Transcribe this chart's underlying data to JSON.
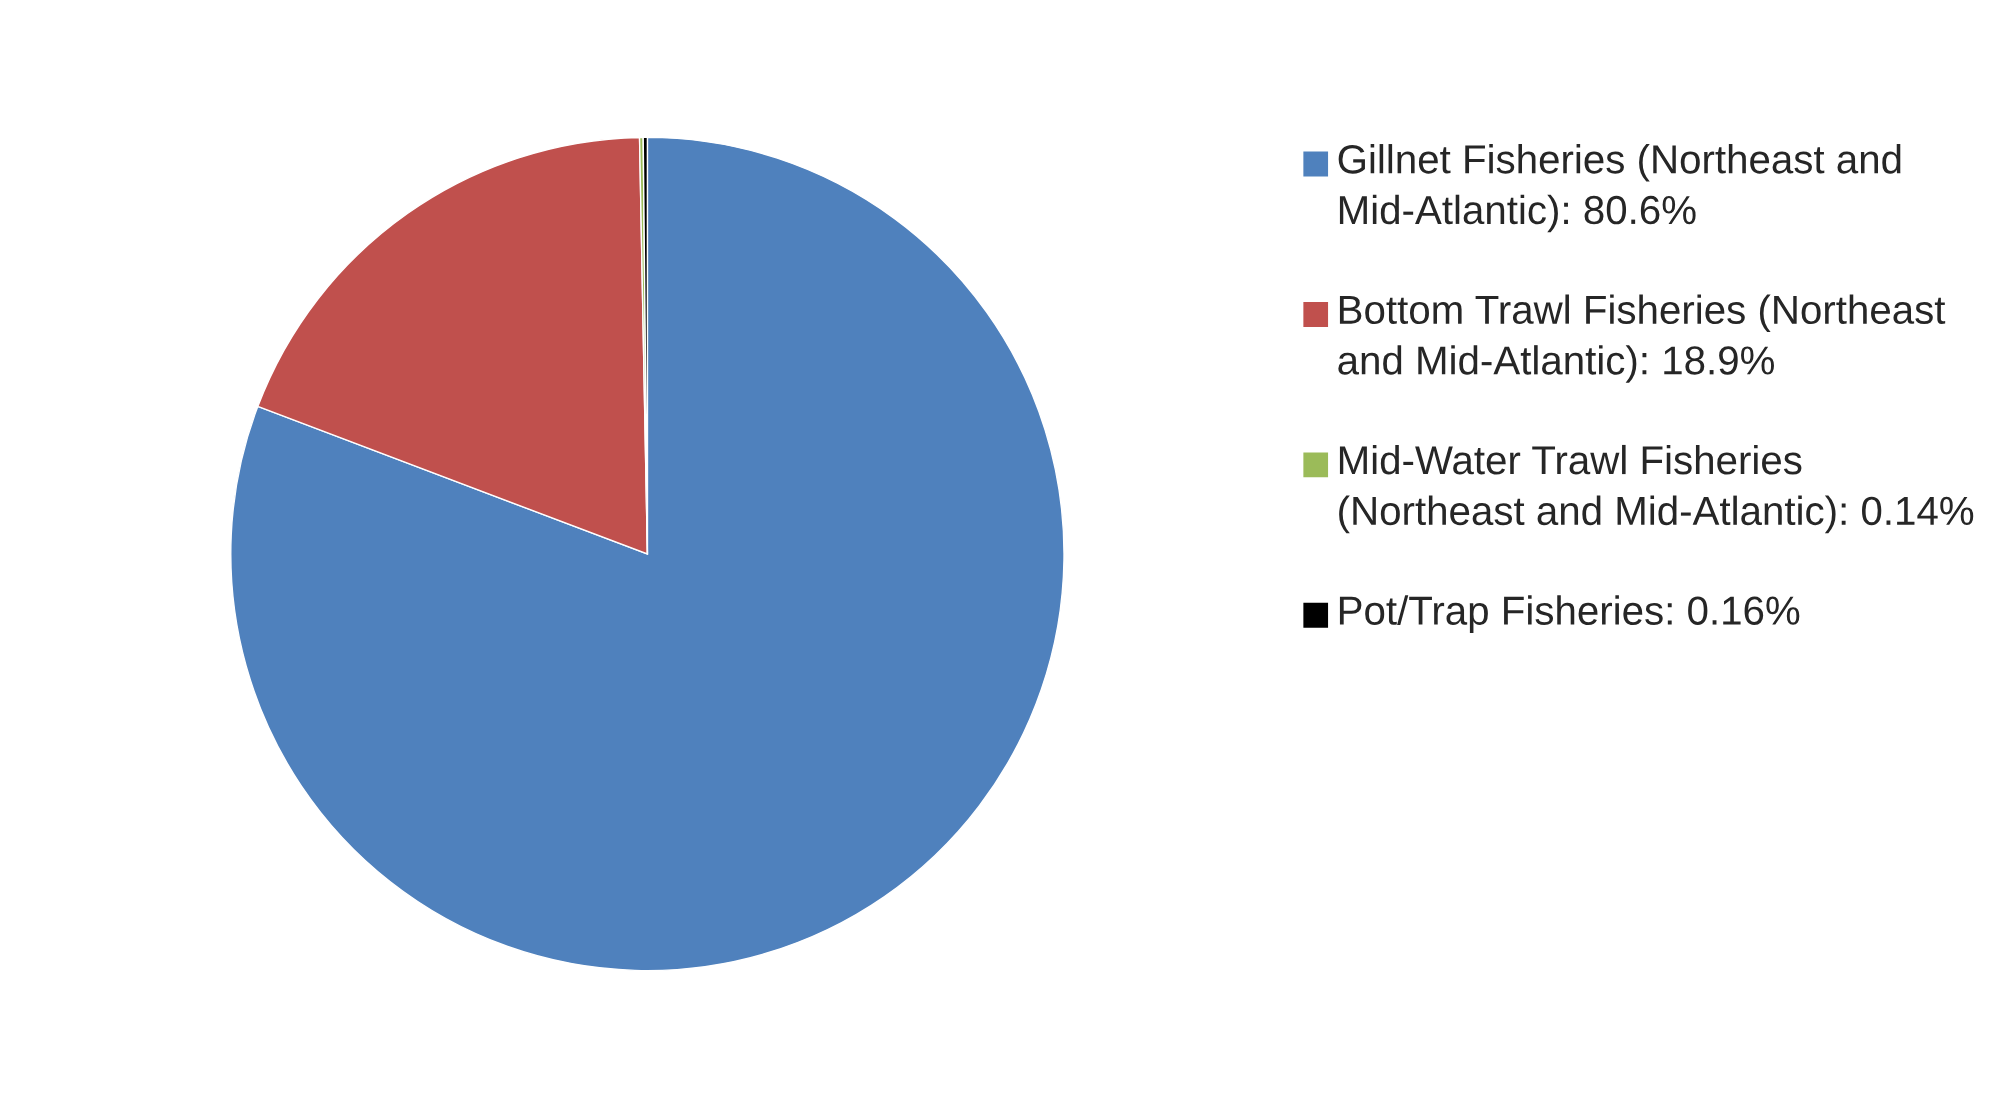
{
  "chart_data": {
    "type": "pie",
    "categories": [
      "Gillnet Fisheries (Northeast and Mid-Atlantic): 80.6%",
      "Bottom Trawl Fisheries (Northeast and Mid-Atlantic): 18.9%",
      "Mid-Water Trawl Fisheries (Northeast and Mid-Atlantic): 0.14%",
      "Pot/Trap Fisheries: 0.16%"
    ],
    "values": [
      80.6,
      18.9,
      0.14,
      0.16
    ],
    "colors": [
      "#4f81bd",
      "#c0504d",
      "#9bbb59",
      "#000000"
    ],
    "legend": "right"
  }
}
